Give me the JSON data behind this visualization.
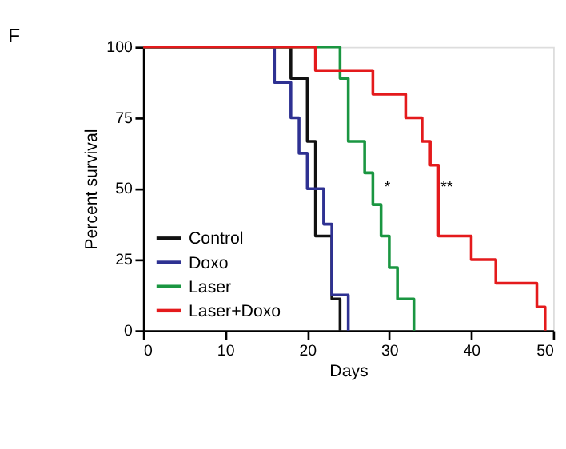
{
  "chart_data": {
    "type": "step",
    "title": "F",
    "xlabel": "Days",
    "ylabel": "Percent survival",
    "xlim": [
      0,
      50
    ],
    "xticks": [
      0,
      10,
      20,
      30,
      40,
      50
    ],
    "ylim": [
      0,
      100
    ],
    "yticks": [
      0,
      25,
      50,
      75,
      100
    ],
    "grid": false,
    "legend": "bottom left",
    "line_style": "solid",
    "marker": "none",
    "series": [
      {
        "name": "Control",
        "color": "#111111",
        "x": [
          0,
          18,
          20,
          21,
          23,
          24
        ],
        "values": [
          100,
          88.9,
          66.7,
          33.3,
          11.1,
          0
        ]
      },
      {
        "name": "Doxo",
        "color": "#2e3192",
        "x": [
          0,
          16,
          18,
          19,
          20,
          22,
          23,
          25
        ],
        "values": [
          100,
          87.5,
          75,
          62.5,
          50,
          37.5,
          12.5,
          0
        ]
      },
      {
        "name": "Laser",
        "color": "#1a9641",
        "x": [
          0,
          24,
          25,
          27,
          28,
          29,
          30,
          31,
          33
        ],
        "values": [
          100,
          88.9,
          66.7,
          55.6,
          44.4,
          33.3,
          22.2,
          11.1,
          0
        ]
      },
      {
        "name": "Laser+Doxo",
        "color": "#e41a1c",
        "x": [
          0,
          21,
          28,
          32,
          34,
          35,
          36,
          40,
          43,
          48,
          49
        ],
        "values": [
          100,
          91.7,
          83.3,
          75,
          66.7,
          58.3,
          33.3,
          25,
          16.7,
          8.3,
          0
        ]
      }
    ],
    "annotations": [
      "*",
      "**"
    ]
  }
}
